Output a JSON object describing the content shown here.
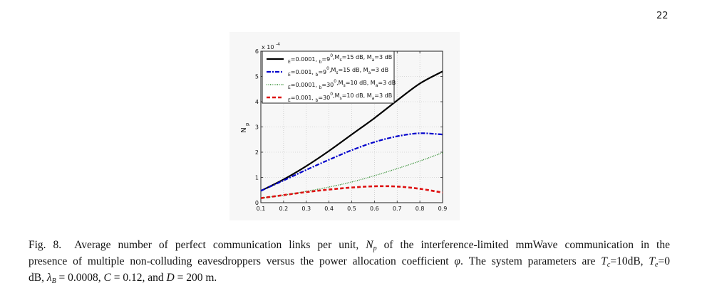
{
  "page": {
    "number": "22"
  },
  "chart_data": {
    "type": "line",
    "title": "",
    "xlabel": "",
    "ylabel": "N",
    "ylabel_sub": "p",
    "y_multiplier_label": "x 10",
    "y_multiplier_exp": "-4",
    "xlim": [
      0.1,
      0.9
    ],
    "ylim": [
      0,
      6
    ],
    "grid": true,
    "legend_placement": "top-left",
    "x": [
      0.1,
      0.2,
      0.3,
      0.4,
      0.5,
      0.6,
      0.7,
      0.8,
      0.9
    ],
    "x_tick_labels": [
      "0.1",
      "0.2",
      "0.3",
      "0.4",
      "0.5",
      "0.6",
      "0.7",
      "0.8",
      "0.9"
    ],
    "y_ticks": [
      0,
      1,
      2,
      3,
      4,
      5,
      6
    ],
    "y_tick_labels": [
      "0",
      "1",
      "2",
      "3",
      "4",
      "5",
      "6"
    ],
    "series": [
      {
        "name": "E=0.0001, b=9⁰,Ms=15 dB, Ma=3 dB",
        "legend_parts": [
          "E",
          "=0.0001,  ",
          "b",
          "=9",
          "0",
          ",M",
          "s",
          "=15 dB, M",
          "a",
          "=3 dB"
        ],
        "color": "#000000",
        "style": "solid",
        "values": [
          0.47,
          0.92,
          1.45,
          2.05,
          2.7,
          3.35,
          4.05,
          4.72,
          5.2
        ]
      },
      {
        "name": "E=0.001, b=9⁰,Ms=15 dB, Ma=3 dB",
        "legend_parts": [
          "E",
          "=0.001,  ",
          "b",
          "=9",
          "0",
          ",M",
          "s",
          "=15 dB, M",
          "a",
          "=3 dB"
        ],
        "color": "#0000cc",
        "style": "dashdot",
        "values": [
          0.47,
          0.88,
          1.3,
          1.7,
          2.08,
          2.4,
          2.63,
          2.75,
          2.7
        ]
      },
      {
        "name": "E=0.0001, b=30⁰,Ms=10 dB, Ma=3 dB",
        "legend_parts": [
          "E",
          "=0.0001,  ",
          "b",
          "=30",
          "0",
          ",M",
          "s",
          "=10 dB, M",
          "a",
          "=3 dB"
        ],
        "color": "#2e8b2e",
        "style": "dotted",
        "values": [
          0.18,
          0.3,
          0.45,
          0.62,
          0.82,
          1.07,
          1.35,
          1.65,
          1.98
        ]
      },
      {
        "name": "E=0.001, b=30⁰,Ms=10 dB, Ma=3 dB",
        "legend_parts": [
          "E",
          "=0.001,  ",
          "b",
          "=30",
          "0",
          ",M",
          "s",
          "=10 dB, M",
          "a",
          "=3 dB"
        ],
        "color": "#dd1111",
        "style": "dashed",
        "values": [
          0.18,
          0.3,
          0.42,
          0.52,
          0.6,
          0.65,
          0.64,
          0.55,
          0.4
        ]
      }
    ]
  },
  "caption": {
    "fig_label": "Fig. 8.",
    "line1_a": "Average number of perfect communication links per unit, ",
    "line1_np_N": "N",
    "line1_np_sub": "p",
    "line1_b": " of the interference-limited mmWave communication in the",
    "line2_a": "presence of multiple non-colluding eavesdroppers versus the power allocation coefficient ",
    "line2_phi": "φ",
    "line2_b": ". The system parameters are ",
    "line2_tc_T": "T",
    "line2_tc_sub": "c",
    "line2_tc_val": "=10dB, ",
    "line2_te_T": "T",
    "line2_te_sub": "e",
    "line2_te_val": "=0",
    "line3_a": "dB, ",
    "line3_lambda": "λ",
    "line3_lambda_sub": "B",
    "line3_b": " = 0.0008, ",
    "line3_C": "C",
    "line3_c": " = 0.12, and ",
    "line3_D": "D",
    "line3_d": " = 200 m."
  }
}
